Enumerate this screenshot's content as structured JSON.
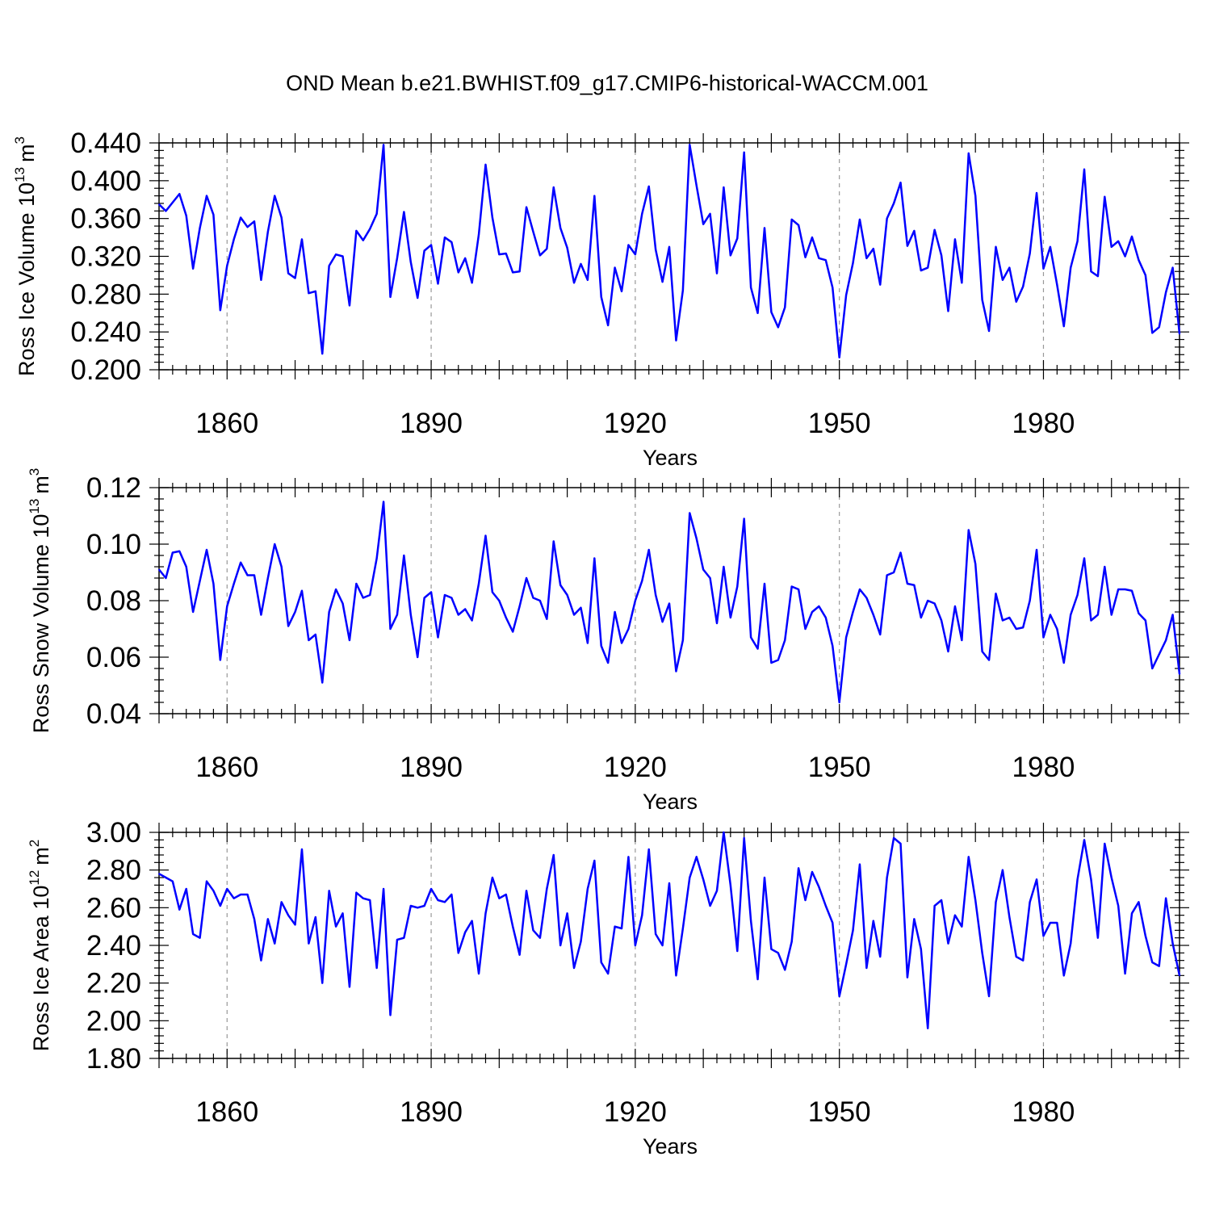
{
  "title": "OND Mean b.e21.BWHIST.f09_g17.CMIP6-historical-WACCM.001",
  "colors": {
    "line": "#0000ff",
    "axis": "#000000",
    "grid": "#999999",
    "background": "#ffffff"
  },
  "chart_data": [
    {
      "type": "line",
      "ylabel": {
        "text": "Ross Ice Volume 10",
        "exp": "13",
        "unit": "m",
        "unit_exp": "3"
      },
      "xlabel": "Years",
      "xlim": [
        1850,
        2000
      ],
      "ylim": [
        0.2,
        0.44
      ],
      "xticks": [
        "1860",
        "1890",
        "1920",
        "1950",
        "1980"
      ],
      "yticks": [
        "0.200",
        "0.240",
        "0.280",
        "0.320",
        "0.360",
        "0.400",
        "0.440"
      ],
      "series": [
        {
          "name": "Ross Ice Volume",
          "x_start": 1850,
          "values": [
            0.375,
            0.368,
            0.377,
            0.386,
            0.363,
            0.307,
            0.35,
            0.384,
            0.364,
            0.263,
            0.31,
            0.338,
            0.361,
            0.351,
            0.357,
            0.295,
            0.346,
            0.384,
            0.361,
            0.302,
            0.297,
            0.338,
            0.281,
            0.283,
            0.217,
            0.31,
            0.322,
            0.32,
            0.268,
            0.347,
            0.337,
            0.349,
            0.365,
            0.438,
            0.277,
            0.318,
            0.367,
            0.314,
            0.276,
            0.326,
            0.332,
            0.291,
            0.34,
            0.335,
            0.303,
            0.318,
            0.292,
            0.343,
            0.417,
            0.361,
            0.322,
            0.323,
            0.303,
            0.304,
            0.372,
            0.346,
            0.321,
            0.328,
            0.393,
            0.35,
            0.329,
            0.292,
            0.312,
            0.295,
            0.384,
            0.277,
            0.247,
            0.308,
            0.283,
            0.332,
            0.322,
            0.365,
            0.394,
            0.327,
            0.293,
            0.33,
            0.231,
            0.284,
            0.438,
            0.395,
            0.354,
            0.365,
            0.302,
            0.393,
            0.321,
            0.339,
            0.43,
            0.287,
            0.26,
            0.35,
            0.261,
            0.245,
            0.266,
            0.359,
            0.353,
            0.319,
            0.34,
            0.318,
            0.316,
            0.287,
            0.213,
            0.279,
            0.313,
            0.359,
            0.318,
            0.328,
            0.29,
            0.36,
            0.376,
            0.398,
            0.331,
            0.347,
            0.305,
            0.308,
            0.348,
            0.321,
            0.262,
            0.338,
            0.292,
            0.429,
            0.384,
            0.274,
            0.241,
            0.33,
            0.295,
            0.308,
            0.272,
            0.288,
            0.323,
            0.387,
            0.307,
            0.33,
            0.29,
            0.246,
            0.308,
            0.336,
            0.412,
            0.304,
            0.299,
            0.383,
            0.33,
            0.336,
            0.32,
            0.341,
            0.316,
            0.3,
            0.239,
            0.245,
            0.282,
            0.308,
            0.238
          ]
        }
      ]
    },
    {
      "type": "line",
      "ylabel": {
        "text": "Ross Snow Volume 10",
        "exp": "13",
        "unit": "m",
        "unit_exp": "3"
      },
      "xlabel": "Years",
      "xlim": [
        1850,
        2000
      ],
      "ylim": [
        0.04,
        0.12
      ],
      "xticks": [
        "1860",
        "1890",
        "1920",
        "1950",
        "1980"
      ],
      "yticks": [
        "0.04",
        "0.06",
        "0.08",
        "0.10",
        "0.12"
      ],
      "series": [
        {
          "name": "Ross Snow Volume",
          "x_start": 1850,
          "values": [
            0.091,
            0.088,
            0.097,
            0.0975,
            0.092,
            0.076,
            0.087,
            0.098,
            0.086,
            0.059,
            0.078,
            0.086,
            0.0935,
            0.089,
            0.089,
            0.075,
            0.088,
            0.1,
            0.092,
            0.071,
            0.076,
            0.0835,
            0.066,
            0.068,
            0.051,
            0.076,
            0.084,
            0.079,
            0.066,
            0.086,
            0.081,
            0.082,
            0.095,
            0.115,
            0.07,
            0.075,
            0.096,
            0.075,
            0.06,
            0.081,
            0.083,
            0.067,
            0.082,
            0.081,
            0.075,
            0.077,
            0.073,
            0.086,
            0.103,
            0.083,
            0.08,
            0.074,
            0.069,
            0.078,
            0.088,
            0.081,
            0.08,
            0.0735,
            0.101,
            0.0855,
            0.082,
            0.075,
            0.0775,
            0.065,
            0.095,
            0.064,
            0.058,
            0.076,
            0.065,
            0.07,
            0.08,
            0.087,
            0.098,
            0.082,
            0.0725,
            0.079,
            0.055,
            0.066,
            0.111,
            0.102,
            0.091,
            0.088,
            0.072,
            0.092,
            0.074,
            0.085,
            0.109,
            0.067,
            0.063,
            0.086,
            0.058,
            0.059,
            0.066,
            0.085,
            0.084,
            0.07,
            0.076,
            0.078,
            0.074,
            0.064,
            0.044,
            0.067,
            0.076,
            0.084,
            0.081,
            0.075,
            0.068,
            0.089,
            0.09,
            0.097,
            0.086,
            0.0855,
            0.074,
            0.08,
            0.079,
            0.073,
            0.062,
            0.078,
            0.066,
            0.105,
            0.093,
            0.062,
            0.059,
            0.0825,
            0.073,
            0.074,
            0.07,
            0.0705,
            0.08,
            0.098,
            0.067,
            0.075,
            0.07,
            0.058,
            0.075,
            0.082,
            0.095,
            0.073,
            0.075,
            0.092,
            0.075,
            0.084,
            0.084,
            0.0835,
            0.0755,
            0.073,
            0.056,
            0.061,
            0.066,
            0.075,
            0.054
          ]
        }
      ]
    },
    {
      "type": "line",
      "ylabel": {
        "text": "Ross Ice Area 10",
        "exp": "12",
        "unit": "m",
        "unit_exp": "2"
      },
      "xlabel": "Years",
      "xlim": [
        1850,
        2000
      ],
      "ylim": [
        1.8,
        3.0
      ],
      "xticks": [
        "1860",
        "1890",
        "1920",
        "1950",
        "1980"
      ],
      "yticks": [
        "1.80",
        "2.00",
        "2.20",
        "2.40",
        "2.60",
        "2.80",
        "3.00"
      ],
      "series": [
        {
          "name": "Ross Ice Area",
          "x_start": 1850,
          "values": [
            2.78,
            2.76,
            2.74,
            2.59,
            2.7,
            2.46,
            2.44,
            2.74,
            2.69,
            2.61,
            2.7,
            2.65,
            2.67,
            2.67,
            2.54,
            2.32,
            2.54,
            2.41,
            2.63,
            2.56,
            2.51,
            2.91,
            2.41,
            2.55,
            2.2,
            2.69,
            2.5,
            2.57,
            2.18,
            2.68,
            2.65,
            2.64,
            2.28,
            2.7,
            2.03,
            2.43,
            2.44,
            2.61,
            2.6,
            2.61,
            2.7,
            2.64,
            2.63,
            2.67,
            2.36,
            2.47,
            2.53,
            2.25,
            2.57,
            2.76,
            2.65,
            2.67,
            2.5,
            2.35,
            2.69,
            2.48,
            2.44,
            2.7,
            2.88,
            2.4,
            2.57,
            2.28,
            2.42,
            2.7,
            2.85,
            2.31,
            2.25,
            2.5,
            2.49,
            2.87,
            2.4,
            2.56,
            2.91,
            2.46,
            2.4,
            2.73,
            2.24,
            2.49,
            2.76,
            2.87,
            2.75,
            2.61,
            2.69,
            3.0,
            2.72,
            2.37,
            2.97,
            2.53,
            2.22,
            2.76,
            2.38,
            2.36,
            2.27,
            2.42,
            2.81,
            2.64,
            2.79,
            2.71,
            2.61,
            2.52,
            2.13,
            2.3,
            2.48,
            2.83,
            2.28,
            2.53,
            2.34,
            2.76,
            2.97,
            2.94,
            2.23,
            2.54,
            2.38,
            1.96,
            2.61,
            2.64,
            2.41,
            2.56,
            2.5,
            2.87,
            2.64,
            2.36,
            2.13,
            2.63,
            2.8,
            2.55,
            2.34,
            2.32,
            2.63,
            2.75,
            2.45,
            2.52,
            2.52,
            2.24,
            2.41,
            2.75,
            2.96,
            2.75,
            2.44,
            2.94,
            2.76,
            2.61,
            2.25,
            2.57,
            2.63,
            2.45,
            2.31,
            2.29,
            2.65,
            2.41,
            2.24
          ]
        }
      ]
    }
  ]
}
